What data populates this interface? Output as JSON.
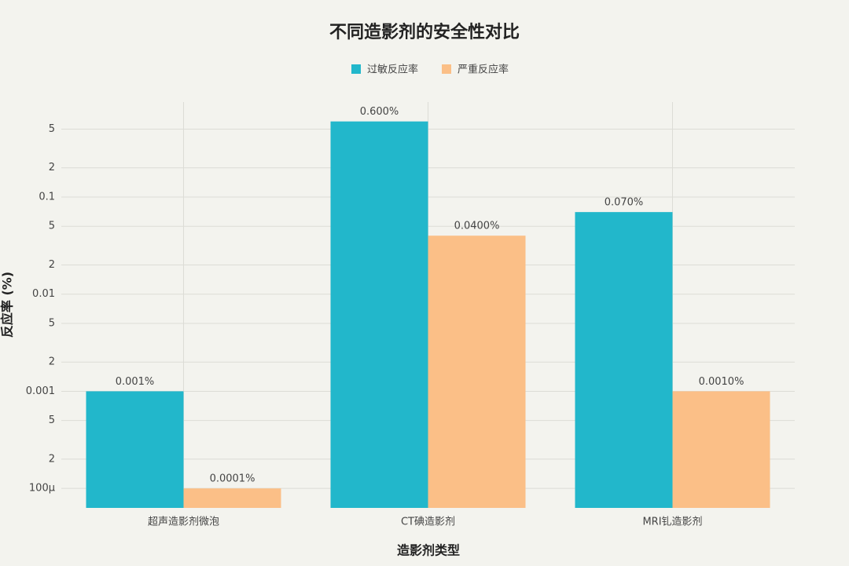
{
  "chart_data": {
    "type": "bar",
    "title": "不同造影剂的安全性对比",
    "categories": [
      "超声造影剂微泡",
      "CT碘造影剂",
      "MRI钆造影剂"
    ],
    "series": [
      {
        "name": "过敏反应率",
        "color": "#22b7cb",
        "values": [
          0.001,
          0.6,
          0.07
        ],
        "value_labels": [
          "0.001%",
          "0.600%",
          "0.070%"
        ]
      },
      {
        "name": "严重反应率",
        "color": "#fbbf87",
        "values": [
          0.0001,
          0.04,
          0.001
        ],
        "value_labels": [
          "0.0001%",
          "0.0400%",
          "0.0010%"
        ]
      }
    ],
    "xlabel": "造影剂类型",
    "ylabel": "反应率 (%)",
    "log_y": true,
    "ylim": [
      6.3e-05,
      0.95
    ],
    "yticks": [
      {
        "value": 0.0001,
        "label": "100μ"
      },
      {
        "value": 0.0002,
        "label": "2"
      },
      {
        "value": 0.0005,
        "label": "5"
      },
      0.001,
      {
        "value": 0.002,
        "label": "2"
      },
      {
        "value": 0.005,
        "label": "5"
      },
      0.01,
      {
        "value": 0.02,
        "label": "2"
      },
      {
        "value": 0.05,
        "label": "5"
      },
      0.1,
      {
        "value": 0.2,
        "label": "2"
      },
      {
        "value": 0.5,
        "label": "5"
      }
    ],
    "grid": true,
    "legend": "top"
  }
}
